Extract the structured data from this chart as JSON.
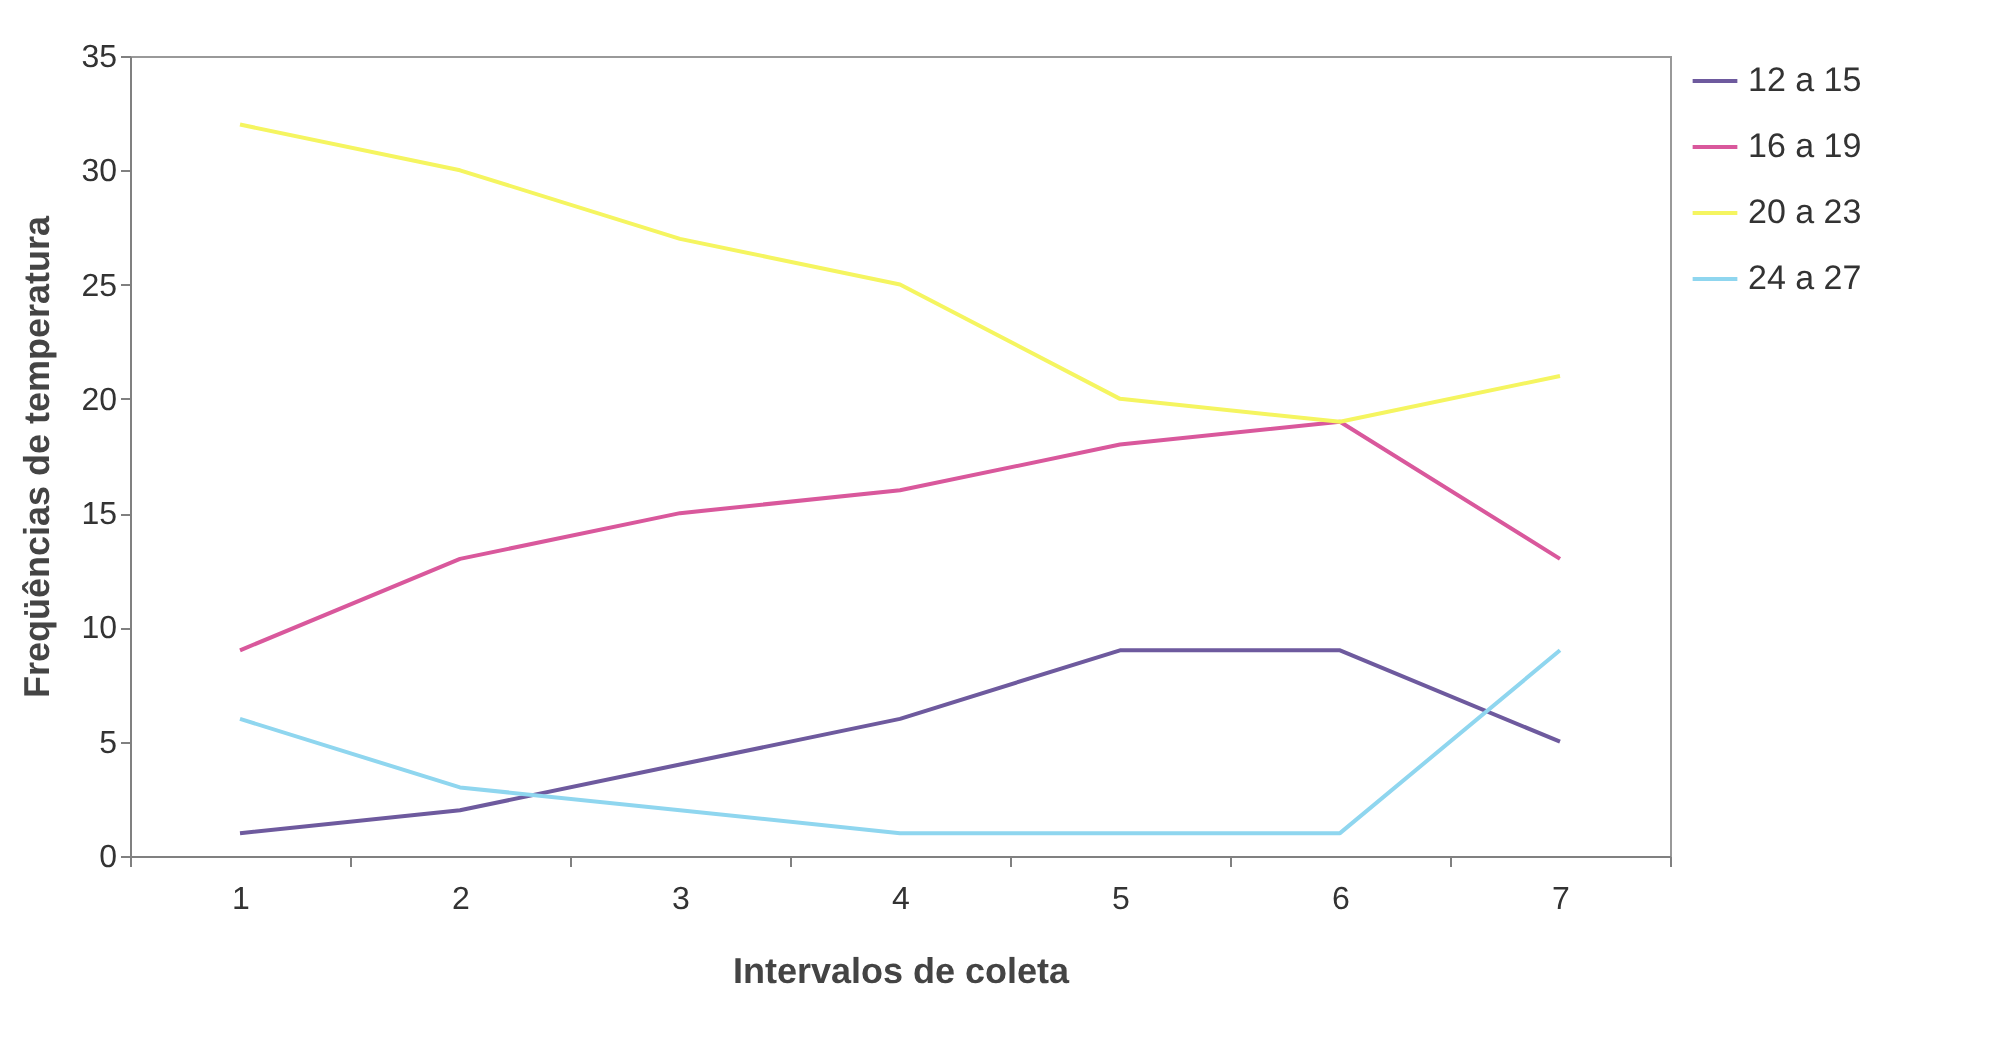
{
  "chart_data": {
    "type": "line",
    "xlabel": "Intervalos de coleta",
    "ylabel": "Freqüências de temperatura",
    "categories": [
      "1",
      "2",
      "3",
      "4",
      "5",
      "6",
      "7"
    ],
    "series": [
      {
        "name": "12 a 15",
        "color": "#6e5a9e",
        "values": [
          1,
          2,
          4,
          6,
          9,
          9,
          5
        ]
      },
      {
        "name": "16 a 19",
        "color": "#d9589c",
        "values": [
          9,
          13,
          15,
          16,
          18,
          19,
          13
        ]
      },
      {
        "name": "20 a 23",
        "color": "#f5f560",
        "values": [
          32,
          30,
          27,
          25,
          20,
          19,
          21
        ]
      },
      {
        "name": "24 a 27",
        "color": "#8fd6ef",
        "values": [
          6,
          3,
          2,
          1,
          1,
          1,
          9
        ]
      }
    ],
    "ylim": [
      0,
      35
    ],
    "yticks": [
      0,
      5,
      10,
      15,
      20,
      25,
      30,
      35
    ],
    "grid": false,
    "legend": "right",
    "marker": "none",
    "line_style": "solid"
  }
}
